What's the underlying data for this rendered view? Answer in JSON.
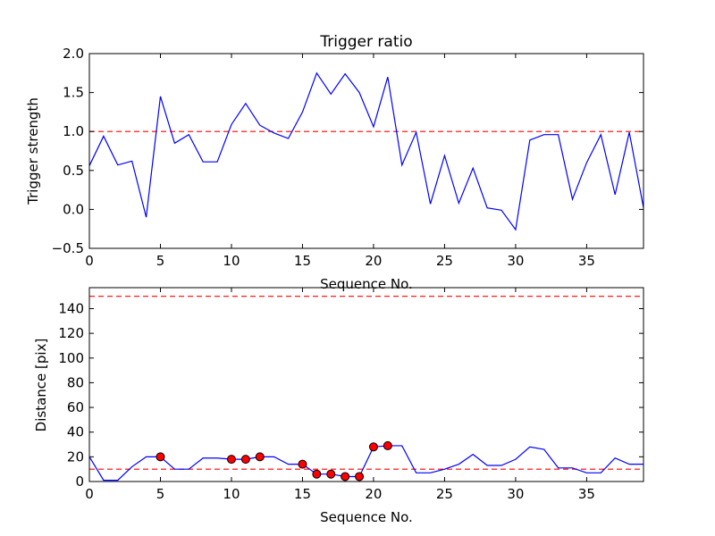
{
  "chart_data": [
    {
      "type": "line",
      "title": "Trigger ratio",
      "xlabel": "Sequence No.",
      "ylabel": "Trigger strength",
      "xlim": [
        0,
        39
      ],
      "ylim": [
        -0.5,
        2.0
      ],
      "xticks": [
        "0",
        "5",
        "10",
        "15",
        "20",
        "25",
        "30",
        "35"
      ],
      "yticks": [
        "−0.5",
        "0.0",
        "0.5",
        "1.0",
        "1.5",
        "2.0"
      ],
      "grid": false,
      "colors": {
        "line": "#0000ff",
        "threshold": "#ff0000"
      },
      "thresholds": [
        1.0
      ],
      "series": [
        {
          "x": [
            0,
            1,
            2,
            3,
            4,
            5,
            6,
            7,
            8,
            9,
            10,
            11,
            12,
            13,
            14,
            15,
            16,
            17,
            18,
            19,
            20,
            21,
            22,
            23,
            24,
            25,
            26,
            27,
            28,
            29,
            30,
            31,
            32,
            33,
            34,
            35,
            36,
            37,
            38,
            39
          ],
          "values": [
            0.56,
            0.94,
            0.57,
            0.62,
            -0.1,
            1.45,
            0.85,
            0.96,
            0.61,
            0.61,
            1.09,
            1.36,
            1.08,
            0.98,
            0.91,
            1.25,
            1.75,
            1.48,
            1.74,
            1.5,
            1.06,
            1.7,
            0.57,
            0.99,
            0.07,
            0.69,
            0.08,
            0.53,
            0.02,
            -0.01,
            -0.26,
            0.89,
            0.96,
            0.96,
            0.13,
            0.6,
            0.96,
            0.19,
            0.99,
            0.02
          ]
        }
      ]
    },
    {
      "type": "line",
      "title": "",
      "xlabel": "Sequence No.",
      "ylabel": "Distance [pix]",
      "xlim": [
        0,
        39
      ],
      "ylim": [
        0,
        157
      ],
      "xticks": [
        "0",
        "5",
        "10",
        "15",
        "20",
        "25",
        "30",
        "35"
      ],
      "yticks": [
        "0",
        "20",
        "40",
        "60",
        "80",
        "100",
        "120",
        "140"
      ],
      "grid": false,
      "colors": {
        "line": "#0000ff",
        "threshold": "#ff0000",
        "marker": "#ff0000"
      },
      "thresholds": [
        10,
        150
      ],
      "series": [
        {
          "x": [
            0,
            1,
            2,
            3,
            4,
            5,
            6,
            7,
            8,
            9,
            10,
            11,
            12,
            13,
            14,
            15,
            16,
            17,
            18,
            19,
            20,
            21,
            22,
            23,
            24,
            25,
            26,
            27,
            28,
            29,
            30,
            31,
            32,
            33,
            34,
            35,
            36,
            37,
            38,
            39
          ],
          "values": [
            20,
            1,
            1,
            12,
            20,
            20,
            10,
            10,
            19,
            19,
            18,
            18,
            20,
            20,
            14,
            14,
            6,
            6,
            4,
            4,
            28,
            29,
            29,
            7,
            7,
            10,
            14,
            22,
            13,
            13,
            18,
            28,
            26,
            11,
            11,
            7,
            7,
            19,
            14,
            14
          ]
        }
      ],
      "markers": {
        "x": [
          5,
          10,
          11,
          12,
          15,
          16,
          17,
          18,
          19,
          20,
          21
        ],
        "values": [
          20,
          18,
          18,
          20,
          14,
          6,
          6,
          4,
          4,
          28,
          29
        ]
      }
    }
  ]
}
